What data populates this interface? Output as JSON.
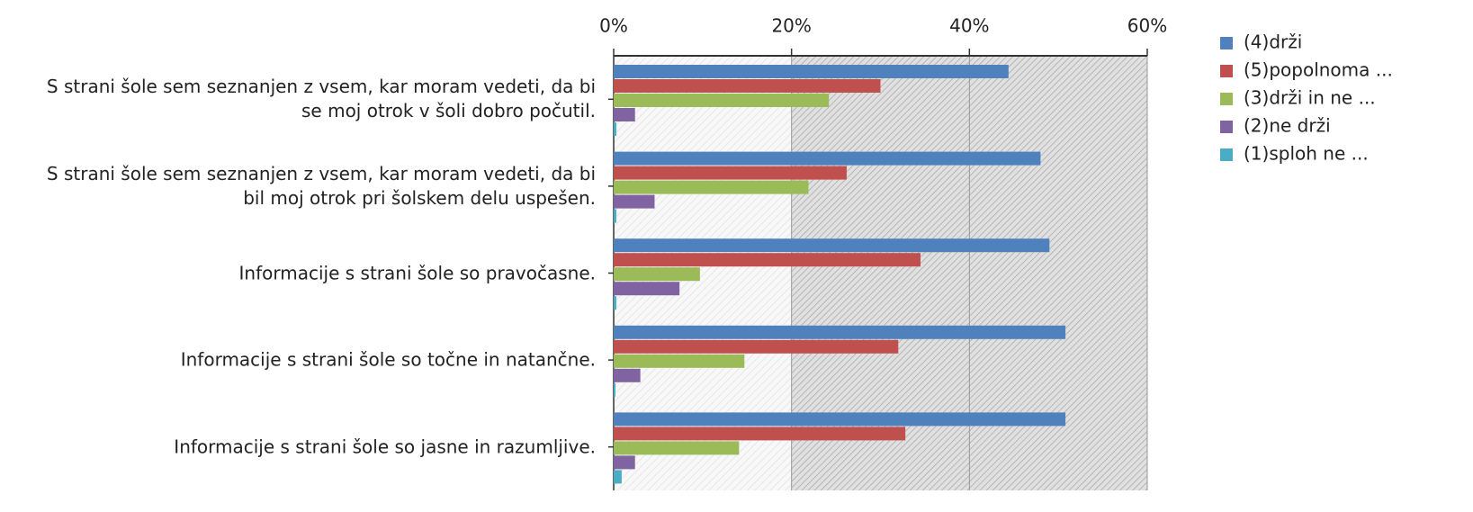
{
  "chart_data": {
    "type": "hbar",
    "categories": [
      "S strani šole sem seznanjen z vsem, kar moram vedeti, da bi se moj otrok v šoli dobro počutil.",
      "S strani šole sem seznanjen  z vsem, kar moram vedeti, da bi bil moj otrok pri šolskem delu uspešen.",
      "Informacije s strani šole so pravočasne.",
      "Informacije s strani šole so točne in natančne.",
      "Informacije s strani šole so jasne in razumljive."
    ],
    "series": [
      {
        "name": "(4)drži",
        "color": "#4f81bd",
        "values": [
          44.4,
          48.0,
          49.0,
          50.8,
          50.8
        ]
      },
      {
        "name": "(5)popolnoma ...",
        "color": "#c0504d",
        "values": [
          30.0,
          26.2,
          34.5,
          32.0,
          32.8
        ]
      },
      {
        "name": "(3)drži in ne ...",
        "color": "#9bbb59",
        "values": [
          24.2,
          21.9,
          9.7,
          14.7,
          14.1
        ]
      },
      {
        "name": "(2)ne drži",
        "color": "#8064a2",
        "values": [
          2.4,
          4.6,
          7.4,
          3.0,
          2.4
        ]
      },
      {
        "name": "(1)sploh ne ...",
        "color": "#4bacc6",
        "values": [
          0.3,
          0.3,
          0.3,
          0.2,
          0.9
        ]
      }
    ],
    "xlim": [
      0,
      60
    ],
    "xticks": [
      {
        "value": 0,
        "label": "0%"
      },
      {
        "value": 20,
        "label": "20%"
      },
      {
        "value": 40,
        "label": "40%"
      },
      {
        "value": 60,
        "label": "60%"
      }
    ],
    "grid": true
  }
}
